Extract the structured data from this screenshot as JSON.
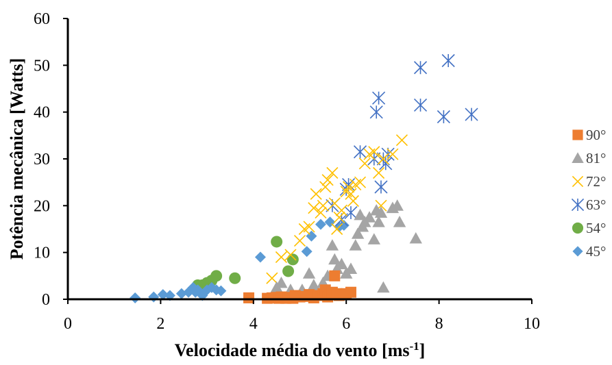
{
  "chart_data": {
    "type": "scatter",
    "title": "",
    "xlabel": "Velocidade média do vento [ms",
    "xlabel_sup": "-1",
    "xlabel_end": "]",
    "ylabel": "Potência mecânica [Watts]",
    "xlim": [
      0,
      10
    ],
    "ylim": [
      0,
      60
    ],
    "xticks": [
      "0",
      "2",
      "4",
      "6",
      "8",
      "10"
    ],
    "yticks": [
      "0",
      "10",
      "20",
      "30",
      "40",
      "50",
      "60"
    ],
    "grid": false,
    "legend_position": "right",
    "series": [
      {
        "name": "90°",
        "marker": "square",
        "color": "#ED7D31",
        "points": [
          [
            3.9,
            0.3
          ],
          [
            4.3,
            0.2
          ],
          [
            4.4,
            0.3
          ],
          [
            4.5,
            0.4
          ],
          [
            4.55,
            0.2
          ],
          [
            4.6,
            0.5
          ],
          [
            4.7,
            0.2
          ],
          [
            4.75,
            0.4
          ],
          [
            4.8,
            0.3
          ],
          [
            4.85,
            0.2
          ],
          [
            4.9,
            0.8
          ],
          [
            5.0,
            0.5
          ],
          [
            5.1,
            0.6
          ],
          [
            5.2,
            1.0
          ],
          [
            5.3,
            0.3
          ],
          [
            5.4,
            0.8
          ],
          [
            5.5,
            1.2
          ],
          [
            5.55,
            2.0
          ],
          [
            5.6,
            0.5
          ],
          [
            5.65,
            1.0
          ],
          [
            5.7,
            1.5
          ],
          [
            5.75,
            5.0
          ],
          [
            5.8,
            1.2
          ],
          [
            5.85,
            0.8
          ],
          [
            5.9,
            1.0
          ],
          [
            6.0,
            1.2
          ],
          [
            6.1,
            1.5
          ]
        ]
      },
      {
        "name": "81°",
        "marker": "triangle",
        "color": "#A5A5A5",
        "points": [
          [
            4.5,
            2.5
          ],
          [
            4.6,
            3.5
          ],
          [
            4.8,
            2.0
          ],
          [
            5.0,
            0.5
          ],
          [
            5.05,
            2.0
          ],
          [
            5.2,
            5.5
          ],
          [
            5.3,
            3.0
          ],
          [
            5.5,
            3.5
          ],
          [
            5.6,
            5.0
          ],
          [
            5.7,
            11.5
          ],
          [
            5.75,
            8.5
          ],
          [
            5.8,
            6.5
          ],
          [
            5.9,
            7.5
          ],
          [
            6.0,
            5.5
          ],
          [
            6.1,
            6.5
          ],
          [
            6.2,
            11.5
          ],
          [
            6.25,
            14.0
          ],
          [
            6.3,
            18.0
          ],
          [
            6.35,
            15.5
          ],
          [
            6.4,
            16.5
          ],
          [
            6.5,
            17.5
          ],
          [
            6.6,
            12.8
          ],
          [
            6.65,
            19.0
          ],
          [
            6.7,
            16.5
          ],
          [
            6.75,
            18.5
          ],
          [
            6.8,
            2.5
          ],
          [
            7.0,
            19.5
          ],
          [
            7.1,
            20.0
          ],
          [
            7.15,
            16.5
          ],
          [
            7.5,
            13.0
          ]
        ]
      },
      {
        "name": "72°",
        "marker": "x",
        "color": "#FFC000",
        "points": [
          [
            4.4,
            4.5
          ],
          [
            4.6,
            9.0
          ],
          [
            4.8,
            9.5
          ],
          [
            5.0,
            12.5
          ],
          [
            5.1,
            15.0
          ],
          [
            5.2,
            15.5
          ],
          [
            5.3,
            19.5
          ],
          [
            5.35,
            22.5
          ],
          [
            5.45,
            18.5
          ],
          [
            5.5,
            20.0
          ],
          [
            5.55,
            24.0
          ],
          [
            5.6,
            25.5
          ],
          [
            5.7,
            27.0
          ],
          [
            5.75,
            20.5
          ],
          [
            5.8,
            15.0
          ],
          [
            5.85,
            17.5
          ],
          [
            5.9,
            19.0
          ],
          [
            6.0,
            23.0
          ],
          [
            6.05,
            24.0
          ],
          [
            6.1,
            22.5
          ],
          [
            6.15,
            21.0
          ],
          [
            6.2,
            24.5
          ],
          [
            6.3,
            25.0
          ],
          [
            6.4,
            29.0
          ],
          [
            6.5,
            31.0
          ],
          [
            6.6,
            31.5
          ],
          [
            6.7,
            27.0
          ],
          [
            6.75,
            20.0
          ],
          [
            6.8,
            30.0
          ],
          [
            7.0,
            31.0
          ],
          [
            7.2,
            34.0
          ]
        ]
      },
      {
        "name": "63°",
        "marker": "asterisk",
        "color": "#4472C4",
        "points": [
          [
            5.7,
            20.0
          ],
          [
            5.9,
            17.0
          ],
          [
            6.0,
            23.5
          ],
          [
            6.05,
            24.5
          ],
          [
            6.1,
            18.5
          ],
          [
            6.3,
            31.5
          ],
          [
            6.6,
            30.0
          ],
          [
            6.65,
            40.0
          ],
          [
            6.7,
            43.0
          ],
          [
            6.75,
            24.0
          ],
          [
            6.8,
            30.0
          ],
          [
            6.85,
            29.0
          ],
          [
            6.9,
            31.0
          ],
          [
            7.6,
            41.5
          ],
          [
            7.6,
            49.5
          ],
          [
            8.1,
            39.0
          ],
          [
            8.2,
            51.0
          ],
          [
            8.7,
            39.5
          ]
        ]
      },
      {
        "name": "54°",
        "marker": "circle",
        "color": "#70AD47",
        "points": [
          [
            2.8,
            3.0
          ],
          [
            2.9,
            3.0
          ],
          [
            3.0,
            3.5
          ],
          [
            3.1,
            4.0
          ],
          [
            3.2,
            5.0
          ],
          [
            3.6,
            4.5
          ],
          [
            4.5,
            12.3
          ],
          [
            4.75,
            6.0
          ],
          [
            4.85,
            8.5
          ]
        ]
      },
      {
        "name": "45°",
        "marker": "diamond",
        "color": "#5B9BD5",
        "points": [
          [
            1.45,
            0.3
          ],
          [
            1.85,
            0.5
          ],
          [
            2.05,
            1.0
          ],
          [
            2.2,
            0.8
          ],
          [
            2.45,
            1.2
          ],
          [
            2.6,
            1.5
          ],
          [
            2.7,
            2.5
          ],
          [
            2.75,
            1.5
          ],
          [
            2.8,
            2.0
          ],
          [
            2.9,
            0.8
          ],
          [
            3.0,
            2.0
          ],
          [
            3.1,
            2.5
          ],
          [
            3.2,
            2.0
          ],
          [
            3.3,
            1.8
          ],
          [
            4.15,
            9.0
          ],
          [
            5.15,
            10.2
          ],
          [
            5.25,
            13.5
          ],
          [
            5.45,
            16.0
          ],
          [
            5.65,
            16.5
          ],
          [
            5.85,
            15.5
          ],
          [
            5.95,
            15.8
          ]
        ]
      }
    ]
  }
}
